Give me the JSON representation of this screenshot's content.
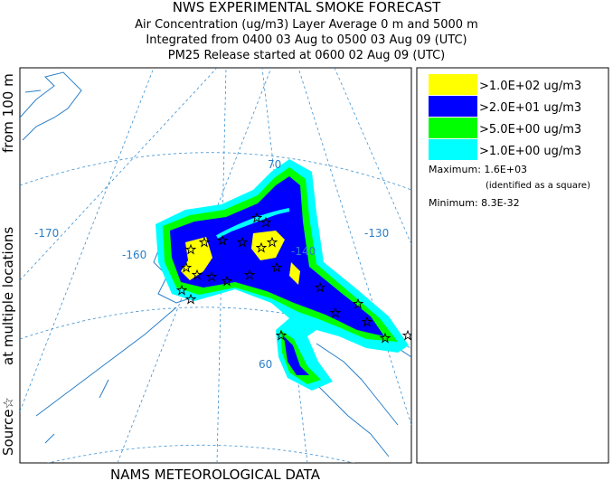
{
  "header": {
    "title": "NWS EXPERIMENTAL SMOKE FORECAST",
    "lines": [
      "Air Concentration (ug/m3) Layer Average    0 m and  5000 m",
      "Integrated from 0400 03 Aug to 0500 03 Aug 09 (UTC)",
      "PM25 Release started at 0600 02 Aug 09 (UTC)"
    ]
  },
  "side_label": [
    "Source☆",
    "at multiple locations",
    "from  100 m"
  ],
  "footer": "NAMS METEOROLOGICAL DATA",
  "legend": {
    "items": [
      {
        "label": ">1.0E+02 ug/m3",
        "color": "#ffff00"
      },
      {
        "label": ">2.0E+01 ug/m3",
        "color": "#0000ff"
      },
      {
        "label": ">5.0E+00 ug/m3",
        "color": "#00ff00"
      },
      {
        "label": ">1.0E+00 ug/m3",
        "color": "#00ffff"
      }
    ],
    "maximum": "Maximum: 1.6E+03",
    "maximum_note": "(identified as a square)",
    "minimum": "Minimum: 8.3E-32"
  },
  "map": {
    "graticule_labels": [
      "-170",
      "-160",
      "-140",
      "-130",
      "70",
      "60"
    ]
  }
}
